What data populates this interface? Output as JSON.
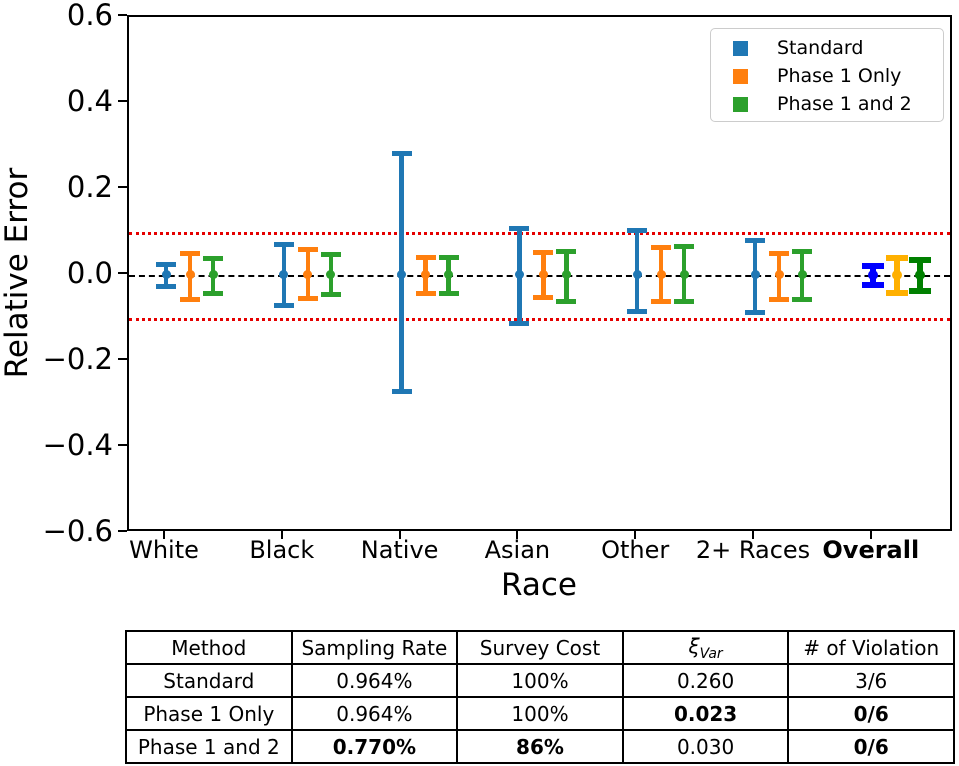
{
  "chart_data": {
    "type": "errorbar",
    "xlabel": "Race",
    "ylabel": "Relative Error",
    "ylim": [
      -0.6,
      0.6
    ],
    "grid": false,
    "yticks": [
      {
        "v": 0.6,
        "label": "0.6"
      },
      {
        "v": 0.4,
        "label": "0.4"
      },
      {
        "v": 0.2,
        "label": "0.2"
      },
      {
        "v": 0.0,
        "label": "0.0"
      },
      {
        "v": -0.2,
        "label": "−0.2"
      },
      {
        "v": -0.4,
        "label": "−0.4"
      },
      {
        "v": -0.6,
        "label": "−0.6"
      }
    ],
    "categories": [
      {
        "label": "White",
        "bold": false
      },
      {
        "label": "Black",
        "bold": false
      },
      {
        "label": "Native",
        "bold": false
      },
      {
        "label": "Asian",
        "bold": false
      },
      {
        "label": "Other",
        "bold": false
      },
      {
        "label": "2+ Races",
        "bold": false
      },
      {
        "label": "Overall",
        "bold": true
      }
    ],
    "reference_lines": [
      {
        "y": 0.0,
        "style": "dashed",
        "color": "#000000"
      },
      {
        "y": 0.1,
        "style": "dotted",
        "color": "#e50000"
      },
      {
        "y": -0.1,
        "style": "dotted",
        "color": "#e50000"
      }
    ],
    "series": [
      {
        "name": "Standard",
        "color": "#1f77b4",
        "overall_color": "#0000ff",
        "center": [
          0.0,
          0.0,
          0.0,
          0.0,
          0.0,
          0.0,
          0.0
        ],
        "upper": [
          0.03,
          0.077,
          0.289,
          0.113,
          0.109,
          0.085,
          0.028
        ],
        "lower": [
          -0.033,
          -0.077,
          -0.277,
          -0.119,
          -0.09,
          -0.093,
          -0.03
        ]
      },
      {
        "name": "Phase 1 Only",
        "color": "#ff7f0e",
        "overall_color": "#ffb000",
        "center": [
          0.0,
          0.0,
          0.0,
          0.0,
          0.0,
          0.0,
          0.0
        ],
        "upper": [
          0.055,
          0.064,
          0.047,
          0.058,
          0.07,
          0.055,
          0.046
        ],
        "lower": [
          -0.063,
          -0.061,
          -0.05,
          -0.058,
          -0.067,
          -0.062,
          -0.049
        ]
      },
      {
        "name": "Phase 1 and 2",
        "color": "#2ca02c",
        "overall_color": "#008000",
        "center": [
          0.0,
          0.0,
          0.0,
          0.0,
          0.0,
          0.0,
          0.0
        ],
        "upper": [
          0.045,
          0.054,
          0.047,
          0.06,
          0.072,
          0.06,
          0.041
        ],
        "lower": [
          -0.048,
          -0.052,
          -0.049,
          -0.067,
          -0.067,
          -0.063,
          -0.044
        ]
      }
    ],
    "legend": {
      "position": "top-right",
      "entries": [
        "Standard",
        "Phase 1 Only",
        "Phase 1 and 2"
      ]
    }
  },
  "table": {
    "headers": [
      {
        "text": "Method"
      },
      {
        "text": "Sampling Rate"
      },
      {
        "text": "Survey Cost"
      },
      {
        "text": "ξ",
        "sub": "Var"
      },
      {
        "text": "# of Violation"
      }
    ],
    "rows": [
      {
        "cells": [
          {
            "text": "Standard"
          },
          {
            "text": "0.964%"
          },
          {
            "text": "100%"
          },
          {
            "text": "0.260"
          },
          {
            "text": "3/6"
          }
        ]
      },
      {
        "cells": [
          {
            "text": "Phase 1 Only"
          },
          {
            "text": "0.964%"
          },
          {
            "text": "100%"
          },
          {
            "text": "0.023",
            "bold": true
          },
          {
            "text": "0/6",
            "bold": true
          }
        ]
      },
      {
        "cells": [
          {
            "text": "Phase 1 and 2"
          },
          {
            "text": "0.770%",
            "bold": true
          },
          {
            "text": "86%",
            "bold": true
          },
          {
            "text": "0.030"
          },
          {
            "text": "0/6",
            "bold": true
          }
        ]
      }
    ]
  }
}
